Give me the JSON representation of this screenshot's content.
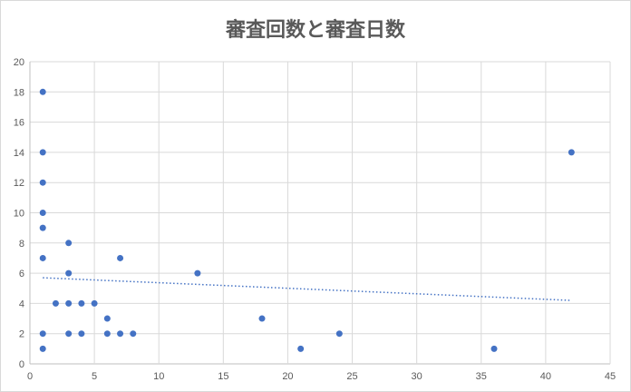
{
  "chart_data": {
    "type": "scatter",
    "title": "審査回数と審査日数",
    "xlabel": "",
    "ylabel": "",
    "xlim": [
      0,
      45
    ],
    "ylim": [
      0,
      20
    ],
    "x_ticks": [
      0,
      5,
      10,
      15,
      20,
      25,
      30,
      35,
      40,
      45
    ],
    "y_ticks": [
      0,
      2,
      4,
      6,
      8,
      10,
      12,
      14,
      16,
      18,
      20
    ],
    "grid": true,
    "legend": "none",
    "marker_color": "#4472c4",
    "series": [
      {
        "points": [
          [
            1,
            18
          ],
          [
            1,
            14
          ],
          [
            1,
            12
          ],
          [
            1,
            10
          ],
          [
            1,
            9
          ],
          [
            1,
            7
          ],
          [
            1,
            2
          ],
          [
            1,
            1
          ],
          [
            2,
            4
          ],
          [
            3,
            8
          ],
          [
            3,
            6
          ],
          [
            3,
            4
          ],
          [
            3,
            2
          ],
          [
            4,
            4
          ],
          [
            4,
            2
          ],
          [
            5,
            4
          ],
          [
            6,
            3
          ],
          [
            6,
            2
          ],
          [
            7,
            7
          ],
          [
            7,
            2
          ],
          [
            8,
            2
          ],
          [
            13,
            6
          ],
          [
            18,
            3
          ],
          [
            21,
            1
          ],
          [
            24,
            2
          ],
          [
            36,
            1
          ],
          [
            42,
            14
          ]
        ]
      }
    ],
    "trendline": {
      "type": "linear",
      "style": "dotted",
      "color": "#4472c4",
      "points": [
        [
          1,
          5.7
        ],
        [
          42,
          4.2
        ]
      ]
    }
  }
}
